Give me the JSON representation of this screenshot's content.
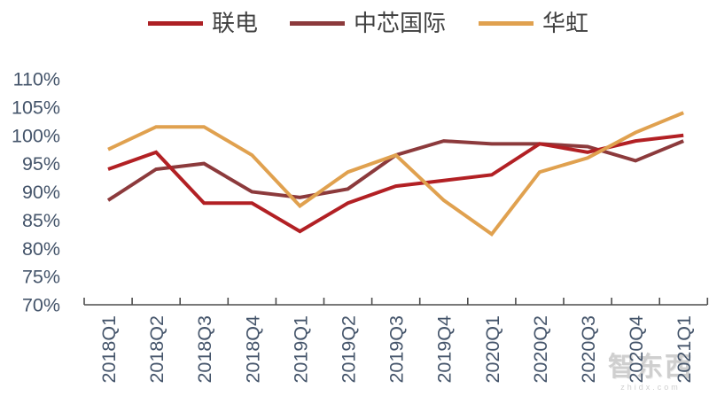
{
  "legend": {
    "items": [
      {
        "label": "联电",
        "color": "#AD2024"
      },
      {
        "label": "中芯国际",
        "color": "#8C3A3C"
      },
      {
        "label": "华虹",
        "color": "#E0A14F"
      }
    ]
  },
  "watermark": {
    "text": "智东西",
    "subtext": "zhidx.com"
  },
  "chart_data": {
    "type": "line",
    "title": "",
    "xlabel": "",
    "ylabel": "",
    "categories": [
      "2018Q1",
      "2018Q2",
      "2018Q3",
      "2018Q4",
      "2019Q1",
      "2019Q2",
      "2019Q3",
      "2019Q4",
      "2020Q1",
      "2020Q2",
      "2020Q3",
      "2020Q4",
      "2021Q1"
    ],
    "series": [
      {
        "name": "联电",
        "color": "#B22024",
        "values": [
          94,
          97,
          88,
          88,
          83,
          88,
          91,
          92,
          93,
          98.5,
          97,
          99,
          100
        ]
      },
      {
        "name": "中芯国际",
        "color": "#8C3A3C",
        "values": [
          88.5,
          94,
          95,
          90,
          89,
          90.5,
          96.5,
          99,
          98.5,
          98.5,
          98,
          95.5,
          99
        ]
      },
      {
        "name": "华虹",
        "color": "#E0A14F",
        "values": [
          97.5,
          101.5,
          101.5,
          96.5,
          87.5,
          93.5,
          96.5,
          88.5,
          82.5,
          93.5,
          96,
          100.5,
          104
        ]
      }
    ],
    "ylim": [
      70,
      110
    ],
    "y_tick_step": 5,
    "y_tick_labels": [
      "70%",
      "75%",
      "80%",
      "85%",
      "90%",
      "95%",
      "100%",
      "105%",
      "110%"
    ],
    "grid": false,
    "legend_position": "top",
    "x_tick_label_rotation": 90
  },
  "colors": {
    "axis": "#4d4d4d",
    "tick_label": "#44546A",
    "legend_text": "#404040",
    "watermark": "#a8a8a8"
  }
}
